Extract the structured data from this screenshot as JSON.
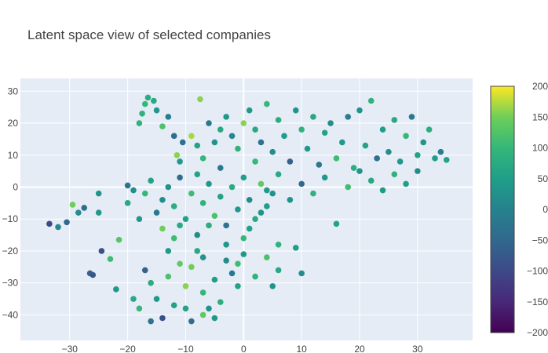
{
  "chart_data": {
    "type": "scatter",
    "title": "Latent space view of selected companies",
    "xlabel": "",
    "ylabel": "",
    "xlim": [
      -38.5,
      39.5
    ],
    "ylim": [
      -48,
      34
    ],
    "x_ticks": [
      -30,
      -20,
      -10,
      0,
      10,
      20,
      30
    ],
    "y_ticks": [
      -40,
      -30,
      -20,
      -10,
      0,
      10,
      20,
      30
    ],
    "grid": true,
    "plot_background": "#e5ecf6",
    "colorscale": "Viridis",
    "colorbar": {
      "min": -200,
      "max": 200,
      "ticks": [
        200,
        150,
        100,
        50,
        0,
        -50,
        -100,
        -150,
        -200
      ]
    },
    "points": [
      [
        -33.5,
        -11.5,
        -100
      ],
      [
        -32,
        -12.5,
        10
      ],
      [
        -30.5,
        -11,
        -50
      ],
      [
        -29.5,
        -5.5,
        150
      ],
      [
        -28.5,
        -8,
        20
      ],
      [
        -27.5,
        -6.5,
        -40
      ],
      [
        -26.5,
        -27,
        -60
      ],
      [
        -26,
        -27.5,
        -80
      ],
      [
        -25,
        -2,
        30
      ],
      [
        -25,
        -8,
        40
      ],
      [
        -24.5,
        -20,
        -90
      ],
      [
        -23,
        -22.5,
        110
      ],
      [
        -22,
        -32,
        40
      ],
      [
        -21.5,
        -16.5,
        130
      ],
      [
        -20,
        0.5,
        -30
      ],
      [
        -19,
        -1,
        20
      ],
      [
        -18,
        20,
        90
      ],
      [
        -17.5,
        23,
        90
      ],
      [
        -17,
        26,
        100
      ],
      [
        -16.5,
        28,
        80
      ],
      [
        -15.5,
        27,
        70
      ],
      [
        -15,
        24,
        40
      ],
      [
        -14,
        19,
        120
      ],
      [
        -13,
        22,
        -10
      ],
      [
        -12,
        16,
        -40
      ],
      [
        -11.5,
        10,
        160
      ],
      [
        -11,
        8,
        40
      ],
      [
        -10.5,
        14,
        -30
      ],
      [
        -9,
        16,
        170
      ],
      [
        -8,
        13,
        60
      ],
      [
        -7.5,
        27.5,
        160
      ],
      [
        -7,
        9,
        100
      ],
      [
        -6,
        20,
        -20
      ],
      [
        -5,
        14,
        30
      ],
      [
        -4,
        18,
        70
      ],
      [
        -3,
        22,
        40
      ],
      [
        -2,
        16,
        10
      ],
      [
        -1,
        12,
        90
      ],
      [
        0,
        20,
        160
      ],
      [
        1,
        24,
        40
      ],
      [
        2,
        18,
        70
      ],
      [
        3,
        14,
        -30
      ],
      [
        4,
        26,
        100
      ],
      [
        5,
        11,
        20
      ],
      [
        6,
        21,
        80
      ],
      [
        7,
        16,
        50
      ],
      [
        8,
        8,
        -60
      ],
      [
        9,
        24,
        30
      ],
      [
        10,
        18,
        90
      ],
      [
        11,
        12,
        40
      ],
      [
        12,
        22,
        70
      ],
      [
        13,
        7,
        -20
      ],
      [
        14,
        17,
        60
      ],
      [
        15,
        20,
        20
      ],
      [
        16,
        9,
        110
      ],
      [
        17,
        14,
        40
      ],
      [
        18,
        22,
        -10
      ],
      [
        19,
        6,
        80
      ],
      [
        20,
        24,
        30
      ],
      [
        21,
        13,
        60
      ],
      [
        22,
        27,
        90
      ],
      [
        23,
        9,
        -30
      ],
      [
        24,
        18,
        50
      ],
      [
        25,
        11,
        20
      ],
      [
        26,
        21,
        70
      ],
      [
        27,
        8,
        40
      ],
      [
        28,
        16,
        100
      ],
      [
        29,
        22,
        -20
      ],
      [
        30,
        10,
        60
      ],
      [
        31,
        14,
        30
      ],
      [
        32,
        18,
        80
      ],
      [
        33,
        9,
        50
      ],
      [
        34,
        11,
        -10
      ],
      [
        35,
        8.5,
        60
      ],
      [
        -20,
        -5,
        70
      ],
      [
        -18,
        -10,
        40
      ],
      [
        -17,
        -2,
        100
      ],
      [
        -16,
        2,
        60
      ],
      [
        -15,
        -8,
        -20
      ],
      [
        -14,
        -13,
        150
      ],
      [
        -13,
        0,
        30
      ],
      [
        -12,
        -6,
        80
      ],
      [
        -11,
        3,
        -40
      ],
      [
        -10,
        -10,
        60
      ],
      [
        -9,
        -2,
        110
      ],
      [
        -8,
        -15,
        20
      ],
      [
        -7,
        -5,
        90
      ],
      [
        -6,
        1,
        40
      ],
      [
        -5,
        -9,
        120
      ],
      [
        -4,
        -3,
        60
      ],
      [
        -3,
        -12,
        -30
      ],
      [
        -2,
        0,
        80
      ],
      [
        -1,
        -7,
        40
      ],
      [
        0,
        -16,
        100
      ],
      [
        1,
        -4,
        20
      ],
      [
        2,
        -10,
        70
      ],
      [
        3,
        1,
        140
      ],
      [
        4,
        -6,
        50
      ],
      [
        5,
        -2,
        30
      ],
      [
        6,
        -18,
        90
      ],
      [
        -17,
        -26,
        -60
      ],
      [
        -16,
        -30,
        80
      ],
      [
        -15,
        -35,
        40
      ],
      [
        -14,
        -41,
        -90
      ],
      [
        -13,
        -28,
        120
      ],
      [
        -12,
        -37,
        60
      ],
      [
        -11,
        -24,
        140
      ],
      [
        -10,
        -31,
        160
      ],
      [
        -9,
        -42,
        -40
      ],
      [
        -8,
        -20,
        70
      ],
      [
        -7,
        -33,
        100
      ],
      [
        -6,
        -38,
        30
      ],
      [
        -5,
        -29,
        50
      ],
      [
        -4,
        -36,
        80
      ],
      [
        -3,
        -23,
        20
      ],
      [
        -2,
        -27,
        -20
      ],
      [
        -1,
        -31,
        60
      ],
      [
        0,
        -21,
        40
      ],
      [
        2,
        -28,
        90
      ],
      [
        4,
        -22,
        120
      ],
      [
        5,
        -31,
        30
      ],
      [
        6,
        -26,
        70
      ],
      [
        9,
        -19,
        50
      ],
      [
        10,
        -27,
        20
      ],
      [
        -13,
        -20,
        40
      ],
      [
        -12,
        -16,
        110
      ],
      [
        -11,
        -12,
        70
      ],
      [
        -9,
        -25,
        150
      ],
      [
        -7,
        -22,
        30
      ],
      [
        -14,
        -4,
        20
      ],
      [
        -8,
        4,
        60
      ],
      [
        -4,
        6,
        -20
      ],
      [
        0,
        3,
        50
      ],
      [
        2,
        8,
        100
      ],
      [
        4,
        -1,
        40
      ],
      [
        6,
        4,
        70
      ],
      [
        8,
        -4,
        30
      ],
      [
        10,
        1,
        -50
      ],
      [
        12,
        -2,
        90
      ],
      [
        14,
        3,
        40
      ],
      [
        16,
        -11.5,
        60
      ],
      [
        18,
        0,
        110
      ],
      [
        20,
        5,
        30
      ],
      [
        22,
        2,
        70
      ],
      [
        24,
        -1,
        40
      ],
      [
        26,
        4,
        90
      ],
      [
        28,
        1,
        50
      ],
      [
        30,
        5,
        20
      ],
      [
        -6,
        -12,
        80
      ],
      [
        -3,
        -18,
        40
      ],
      [
        -1,
        -24,
        110
      ],
      [
        1,
        -13,
        60
      ],
      [
        3,
        -8,
        30
      ],
      [
        -19,
        -35,
        70
      ],
      [
        -18,
        -38,
        100
      ],
      [
        -16,
        -42,
        -30
      ],
      [
        -10,
        -38,
        60
      ],
      [
        -7,
        -40,
        140
      ],
      [
        -5,
        -41,
        40
      ]
    ]
  }
}
